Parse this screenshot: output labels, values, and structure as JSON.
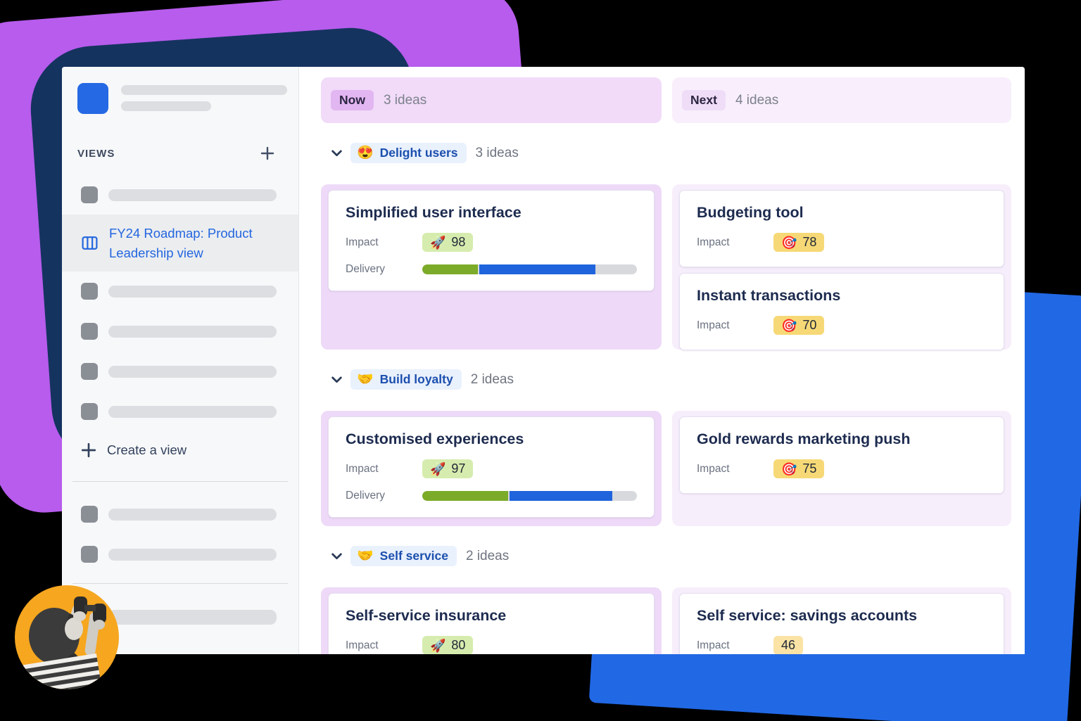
{
  "sidebar": {
    "views_label": "VIEWS",
    "active_view_label": "FY24 Roadmap: Product Leadership view",
    "create_view_label": "Create a view"
  },
  "board": {
    "impact_label": "Impact",
    "delivery_label": "Delivery",
    "columns": [
      {
        "badge": "Now",
        "count": "3 ideas"
      },
      {
        "badge": "Next",
        "count": "4 ideas"
      }
    ],
    "sections": [
      {
        "emoji": "😍",
        "label": "Delight users",
        "count": "3 ideas",
        "now_cards": [
          {
            "title": "Simplified user interface",
            "impact": {
              "emoji": "🚀",
              "value": "98",
              "style": "green"
            },
            "delivery": {
              "green_pct": 26,
              "blue_pct": 54
            }
          }
        ],
        "next_cards": [
          {
            "title": "Budgeting tool",
            "impact": {
              "emoji": "🎯",
              "value": "78",
              "style": "yellow"
            }
          },
          {
            "title": "Instant transactions",
            "impact": {
              "emoji": "🎯",
              "value": "70",
              "style": "yellow"
            }
          }
        ]
      },
      {
        "emoji": "🤝",
        "label": "Build loyalty",
        "count": "2 ideas",
        "now_cards": [
          {
            "title": "Customised experiences",
            "impact": {
              "emoji": "🚀",
              "value": "97",
              "style": "green"
            },
            "delivery": {
              "green_pct": 40,
              "blue_pct": 48
            }
          }
        ],
        "next_cards": [
          {
            "title": "Gold rewards marketing push",
            "impact": {
              "emoji": "🎯",
              "value": "75",
              "style": "yellow"
            }
          }
        ]
      },
      {
        "emoji": "🤝",
        "label": "Self service",
        "count": "2 ideas",
        "now_cards": [
          {
            "title": "Self-service insurance",
            "impact": {
              "emoji": "🚀",
              "value": "80",
              "style": "green"
            }
          }
        ],
        "next_cards": [
          {
            "title": "Self service: savings accounts",
            "impact": {
              "emoji": "",
              "value": "46",
              "style": "light-yellow"
            }
          }
        ]
      }
    ]
  },
  "colors": {
    "accent_purple": "#b75ced",
    "navy": "#15335f",
    "accent_blue": "#2168e4",
    "orange_circle": "#f6a61f",
    "badge_green": "#d6ecae",
    "badge_yellow": "#f6d976",
    "badge_light_yellow": "#fae3a4",
    "progress_green": "#7cab29",
    "progress_blue": "#1f64dc",
    "now_header_bg": "#f1dbf9",
    "next_header_bg": "#f8eefc"
  }
}
